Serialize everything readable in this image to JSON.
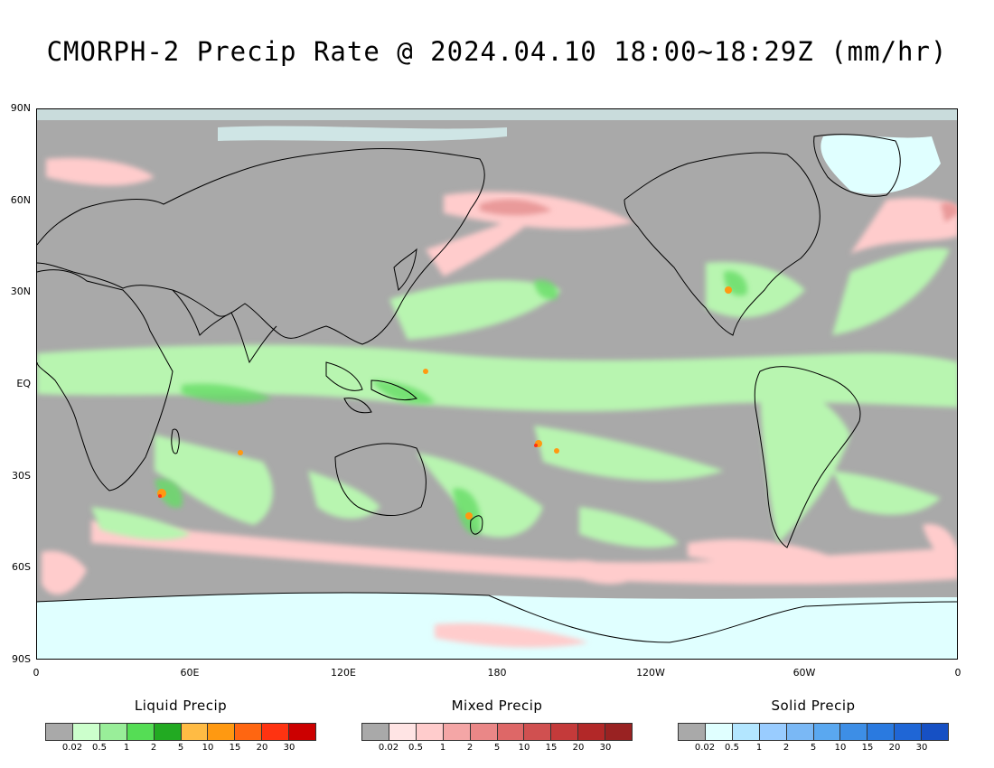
{
  "title": "CMORPH-2 Precip Rate @ 2024.04.10 18:00~18:29Z (mm/hr)",
  "lat_ticks": [
    "90N",
    "60N",
    "30N",
    "EQ",
    "30S",
    "60S",
    "90S"
  ],
  "lon_ticks": [
    "0",
    "60E",
    "120E",
    "180",
    "120W",
    "60W",
    "0"
  ],
  "legends": [
    {
      "title": "Liquid Precip",
      "colors": [
        "#a9a9a9",
        "#ccffcc",
        "#99ee99",
        "#55dd55",
        "#22aa22",
        "#ffbb44",
        "#ff9911",
        "#ff6611",
        "#ff3311",
        "#cc0000"
      ],
      "labels": [
        "0.02",
        "0.5",
        "1",
        "2",
        "5",
        "10",
        "15",
        "20",
        "30"
      ]
    },
    {
      "title": "Mixed Precip",
      "colors": [
        "#a9a9a9",
        "#ffe4e4",
        "#ffcccc",
        "#f4a6a6",
        "#ea8787",
        "#de6767",
        "#d05050",
        "#c43a3a",
        "#b22828",
        "#992222"
      ],
      "labels": [
        "0.02",
        "0.5",
        "1",
        "2",
        "5",
        "10",
        "15",
        "20",
        "30"
      ]
    },
    {
      "title": "Solid Precip",
      "colors": [
        "#a9a9a9",
        "#e0ffff",
        "#b3e6ff",
        "#99ccff",
        "#7ab8f5",
        "#5aa8f0",
        "#3d8ee6",
        "#2a7ae0",
        "#1f66d6",
        "#1650c4"
      ],
      "labels": [
        "0.02",
        "0.5",
        "1",
        "2",
        "5",
        "10",
        "15",
        "20",
        "30"
      ]
    }
  ]
}
